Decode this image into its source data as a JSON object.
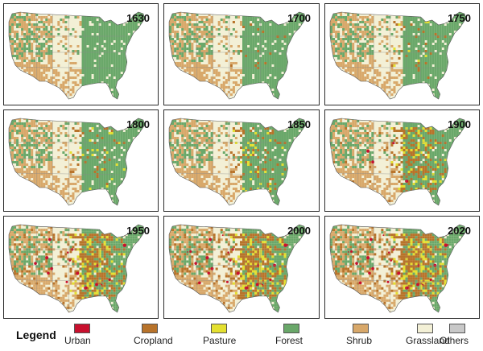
{
  "panels": [
    {
      "year": "1630",
      "stage": 0
    },
    {
      "year": "1700",
      "stage": 0.05
    },
    {
      "year": "1750",
      "stage": 0.1
    },
    {
      "year": "1800",
      "stage": 0.15
    },
    {
      "year": "1850",
      "stage": 0.25
    },
    {
      "year": "1900",
      "stage": 0.55
    },
    {
      "year": "1950",
      "stage": 0.8
    },
    {
      "year": "2000",
      "stage": 0.9
    },
    {
      "year": "2020",
      "stage": 0.95
    }
  ],
  "legend": {
    "title": "Legend",
    "items": [
      {
        "label": "Urban",
        "color": "#c8102e"
      },
      {
        "label": "Cropland",
        "color": "#b8732a"
      },
      {
        "label": "Pasture",
        "color": "#e4e030"
      },
      {
        "label": "Forest",
        "color": "#6aa86a"
      },
      {
        "label": "Shrub",
        "color": "#d8a86a"
      },
      {
        "label": "Grassland",
        "color": "#f3f0d6"
      },
      {
        "label": "Others",
        "color": "#c8c8c8"
      }
    ]
  }
}
